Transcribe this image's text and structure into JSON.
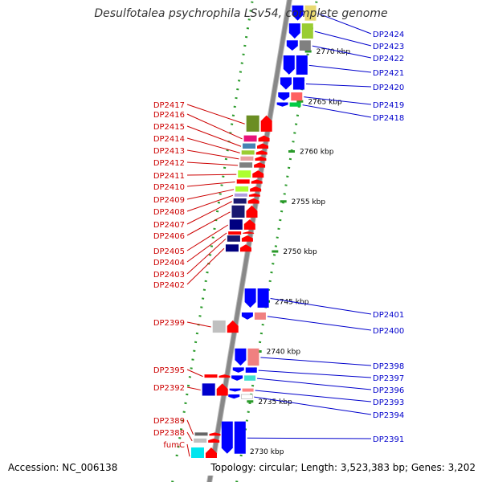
{
  "title": "Desulfotalea psychrophila LSv54, complete genome",
  "footer": {
    "accession": "Accession: NC_006138",
    "topology": "Topology: circular; Length: 3,523,383 bp; Genes: 3,202"
  },
  "colors": {
    "backbone": "#888888",
    "ruler_dots": "#2a9a2a",
    "tick_label": "#000000",
    "forward_label": "#cc0000",
    "reverse_label": "#0000cc",
    "forward_arrow": "#ff0000",
    "reverse_arrow": "#0000ff"
  },
  "ticks": [
    {
      "kb": 2730,
      "label": "2730 kbp"
    },
    {
      "kb": 2735,
      "label": "2735 kbp"
    },
    {
      "kb": 2740,
      "label": "2740 kbp"
    },
    {
      "kb": 2745,
      "label": "2745 kbp"
    },
    {
      "kb": 2750,
      "label": "2750 kbp"
    },
    {
      "kb": 2755,
      "label": "2755 kbp"
    },
    {
      "kb": 2760,
      "label": "2760 kbp"
    },
    {
      "kb": 2765,
      "label": "2765 kbp"
    },
    {
      "kb": 2770,
      "label": "2770 kbp"
    }
  ],
  "forward_genes": [
    {
      "name": "DP2417",
      "start": 2761.9,
      "end": 2763.6,
      "cog": "#6b8e23"
    },
    {
      "name": "DP2416",
      "start": 2760.9,
      "end": 2761.6,
      "cog": "#e8127a"
    },
    {
      "name": "DP2415",
      "start": 2760.2,
      "end": 2760.8,
      "cog": "#4682b4"
    },
    {
      "name": "DP2414",
      "start": 2759.6,
      "end": 2760.1,
      "cog": "#9acd32"
    },
    {
      "name": "DP2413",
      "start": 2759.0,
      "end": 2759.5,
      "cog": "#e9a0a0"
    },
    {
      "name": "DP2412",
      "start": 2758.3,
      "end": 2758.9,
      "cog": "#808080"
    },
    {
      "name": "DP2411",
      "start": 2757.3,
      "end": 2758.1,
      "cog": "#adff2f"
    },
    {
      "name": "DP2410",
      "start": 2756.7,
      "end": 2757.2,
      "cog": "#ff0000"
    },
    {
      "name": "DP2409",
      "start": 2755.9,
      "end": 2756.5,
      "cog": "#adff2f"
    },
    {
      "name": "DP2408",
      "start": 2755.4,
      "end": 2755.8,
      "cog": "#b0a0e0"
    },
    {
      "name": "DP2407",
      "start": 2754.7,
      "end": 2755.3,
      "cog": "#191970"
    },
    {
      "name": "DP2406",
      "start": 2753.3,
      "end": 2754.6,
      "cog": "#191970"
    },
    {
      "name": "DP2405",
      "start": 2752.1,
      "end": 2753.2,
      "cog": "#000080"
    },
    {
      "name": "DP2404",
      "start": 2751.7,
      "end": 2752.0,
      "cog": "#ff0000"
    },
    {
      "name": "DP2403",
      "start": 2750.9,
      "end": 2751.6,
      "cog": "#191970"
    },
    {
      "name": "DP2402",
      "start": 2749.9,
      "end": 2750.7,
      "cog": "#000080"
    },
    {
      "name": "DP2399",
      "start": 2741.8,
      "end": 2743.1,
      "cog": "#c0c0c0"
    },
    {
      "name": "DP2395",
      "start": 2737.3,
      "end": 2737.7,
      "cog": "#ff0000"
    },
    {
      "name": "DP2392",
      "start": 2735.5,
      "end": 2736.8,
      "cog": "#0000cd"
    },
    {
      "name": "DP2389",
      "start": 2731.5,
      "end": 2731.9,
      "cog": "#666666"
    },
    {
      "name": "DP2388",
      "start": 2730.8,
      "end": 2731.3,
      "cog": "#c0c0c0"
    },
    {
      "name": "fumC",
      "start": 2728.6,
      "end": 2730.4,
      "cog": "#00e5ee"
    }
  ],
  "reverse_genes": [
    {
      "name": "DP2424",
      "start": 2773.0,
      "end": 2774.6,
      "cog": "#e8d870"
    },
    {
      "name": "DP2423",
      "start": 2771.2,
      "end": 2772.8,
      "cog": "#9acd32"
    },
    {
      "name": "DP2422",
      "start": 2770.0,
      "end": 2771.1,
      "cog": "#808080"
    },
    {
      "name": "DP2421",
      "start": 2767.6,
      "end": 2769.6,
      "cog": "#0000ff"
    },
    {
      "name": "DP2420",
      "start": 2766.1,
      "end": 2767.4,
      "cog": "#0000ff"
    },
    {
      "name": "DP2419",
      "start": 2765.0,
      "end": 2765.9,
      "cog": "#ff6060"
    },
    {
      "name": "DP2418",
      "start": 2764.4,
      "end": 2764.9,
      "cog": "#00cc44"
    },
    {
      "name": "DP2401",
      "start": 2744.3,
      "end": 2746.3,
      "cog": "#0000ff"
    },
    {
      "name": "DP2400",
      "start": 2743.1,
      "end": 2743.9,
      "cog": "#f08080"
    },
    {
      "name": "DP2398",
      "start": 2738.5,
      "end": 2740.3,
      "cog": "#f08080"
    },
    {
      "name": "DP2397",
      "start": 2737.8,
      "end": 2738.4,
      "cog": "#0000ff"
    },
    {
      "name": "DP2396",
      "start": 2737.0,
      "end": 2737.6,
      "cog": "#40e0d0"
    },
    {
      "name": "DP2393",
      "start": 2735.9,
      "end": 2736.3,
      "cog": "#ff8080"
    },
    {
      "name": "DP2394",
      "start": 2735.2,
      "end": 2735.7,
      "cog": "#ffffff"
    },
    {
      "name": "DP2391",
      "start": 2729.7,
      "end": 2733.0,
      "cog": "#0000ff"
    }
  ]
}
